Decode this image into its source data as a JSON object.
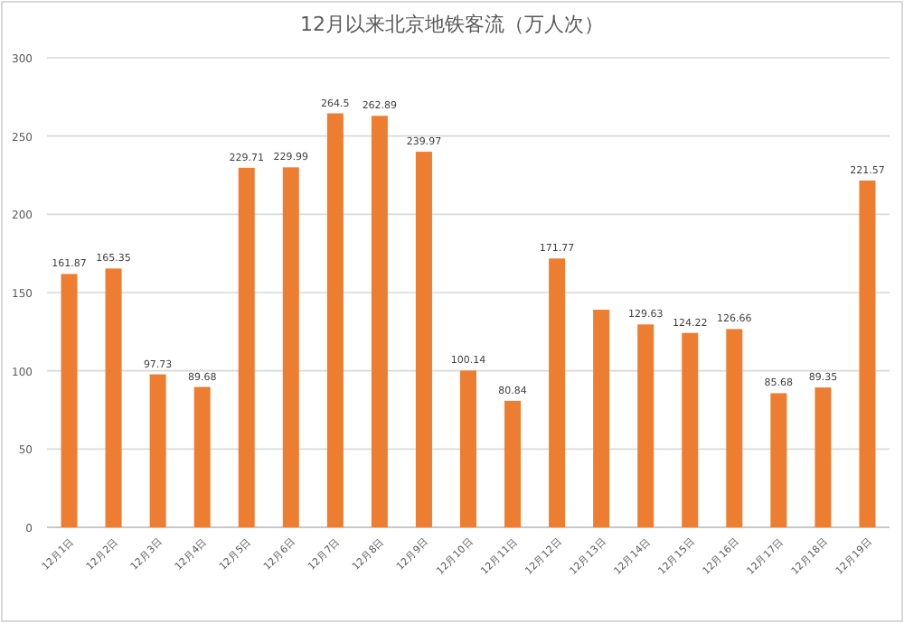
{
  "chart_data": {
    "type": "bar",
    "title": "12月以来北京地铁客流（万人次）",
    "categories": [
      "12月1日",
      "12月2日",
      "12月3日",
      "12月4日",
      "12月5日",
      "12月6日",
      "12月7日",
      "12月8日",
      "12月9日",
      "12月10日",
      "12月11日",
      "12月12日",
      "12月13日",
      "12月14日",
      "12月15日",
      "12月16日",
      "12月17日",
      "12月18日",
      "12月19日"
    ],
    "values": [
      161.87,
      165.35,
      97.73,
      89.68,
      229.71,
      229.99,
      264.5,
      262.89,
      239.97,
      100.14,
      80.84,
      171.77,
      139,
      129.63,
      124.22,
      126.66,
      85.68,
      89.35,
      221.57
    ],
    "value_labels": [
      "161.87",
      "165.35",
      "97.73",
      "89.68",
      "229.71",
      "229.99",
      "264.5",
      "262.89",
      "239.97",
      "100.14",
      "80.84",
      "171.77",
      null,
      "129.63",
      "124.22",
      "126.66",
      "85.68",
      "89.35",
      "221.57"
    ],
    "color": "#ed7d31",
    "ylim": [
      0,
      300
    ],
    "yticks": [
      0,
      50,
      100,
      150,
      200,
      250,
      300
    ],
    "grid": "y"
  }
}
